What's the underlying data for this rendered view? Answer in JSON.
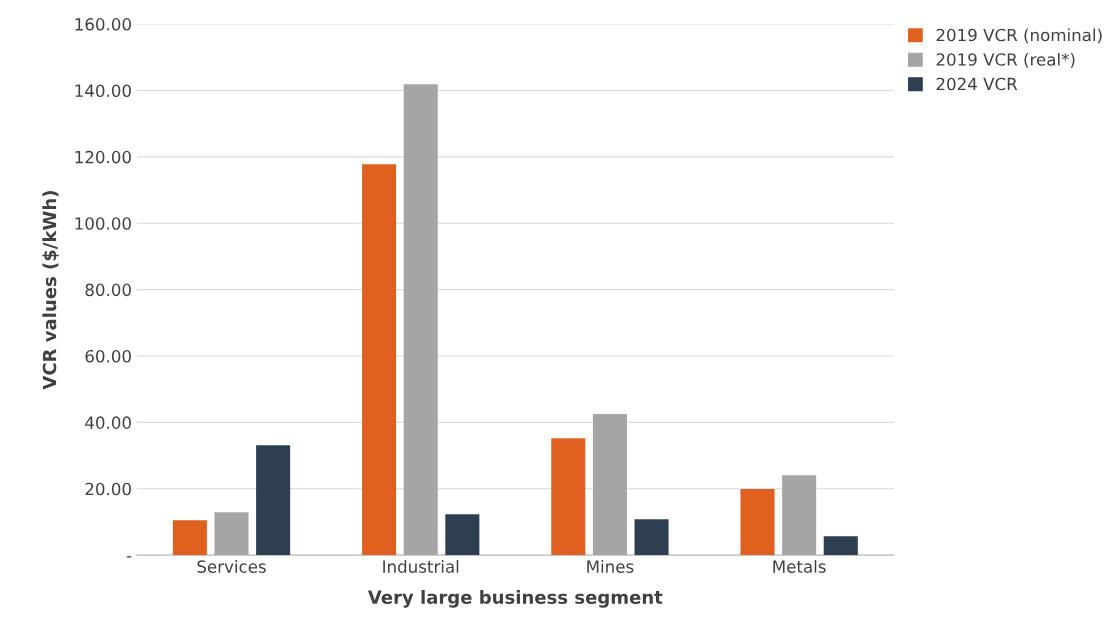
{
  "chart_data": {
    "type": "bar",
    "xlabel": "Very large business segment",
    "ylabel": "VCR values ($/kWh)",
    "categories": [
      "Services",
      "Industrial",
      "Mines",
      "Metals"
    ],
    "series": [
      {
        "name": "2019 VCR (nominal)",
        "color": "#e0601f",
        "values": [
          10.5,
          117.8,
          35.2,
          19.9
        ]
      },
      {
        "name": "2019 VCR (real*)",
        "color": "#a5a5a5",
        "values": [
          12.9,
          141.9,
          42.5,
          24.1
        ]
      },
      {
        "name": "2024 VCR",
        "color": "#2e3f52",
        "values": [
          33.1,
          12.3,
          10.8,
          5.7
        ]
      }
    ],
    "ylim": [
      0,
      160
    ],
    "yticks": [
      {
        "value": 0,
        "label": "-"
      },
      {
        "value": 20,
        "label": "20.00"
      },
      {
        "value": 40,
        "label": "40.00"
      },
      {
        "value": 60,
        "label": "60.00"
      },
      {
        "value": 80,
        "label": "80.00"
      },
      {
        "value": 100,
        "label": "100.00"
      },
      {
        "value": 120,
        "label": "120.00"
      },
      {
        "value": 140,
        "label": "140.00"
      },
      {
        "value": 160,
        "label": "160.00"
      }
    ],
    "grid": "y",
    "legend": "top right"
  }
}
